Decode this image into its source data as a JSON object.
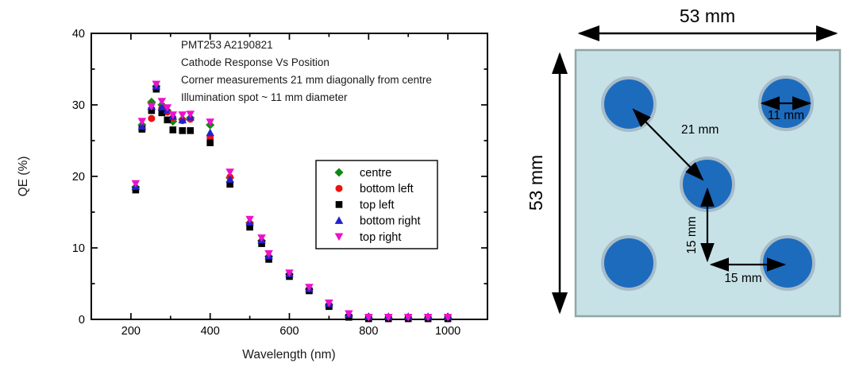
{
  "chart_data": {
    "type": "scatter",
    "annotations": [
      "PMT253 A2190821",
      "Cathode Response Vs Position",
      "Corner measurements 21 mm diagonally from centre",
      "Illumination spot ~ 11 mm diameter"
    ],
    "xlabel": "Wavelength (nm)",
    "ylabel": "QE (%)",
    "xlim": [
      100,
      1100
    ],
    "ylim": [
      0,
      40
    ],
    "xticks_major": [
      200,
      400,
      600,
      800,
      1000
    ],
    "xticks_minor": [
      300,
      500,
      700,
      900
    ],
    "yticks_major": [
      0,
      10,
      20,
      30,
      40
    ],
    "yticks_minor": [
      5,
      15,
      25,
      35
    ],
    "grid": false,
    "legend_position": "middle-right",
    "x": [
      212,
      228,
      252,
      264,
      278,
      292,
      306,
      330,
      350,
      400,
      450,
      500,
      530,
      548,
      600,
      650,
      700,
      750,
      800,
      850,
      900,
      950,
      1000
    ],
    "series": [
      {
        "name": "centre",
        "marker": "diamond",
        "color": "#128712",
        "values": [
          18.5,
          27.2,
          30.4,
          32.6,
          30.0,
          29.2,
          27.7,
          28.0,
          28.2,
          27.2,
          19.8,
          13.5,
          11.0,
          8.8,
          6.3,
          4.2,
          2.0,
          0.5,
          0.2,
          0.2,
          0.2,
          0.2,
          0.2
        ]
      },
      {
        "name": "bottom left",
        "marker": "circle",
        "color": "#ee1111",
        "values": [
          18.2,
          26.8,
          28.1,
          32.4,
          29.5,
          29.0,
          28.2,
          27.8,
          28.0,
          25.4,
          19.9,
          13.4,
          10.9,
          8.7,
          6.2,
          4.1,
          1.9,
          0.4,
          0.2,
          0.1,
          0.1,
          0.1,
          0.1
        ]
      },
      {
        "name": "top left",
        "marker": "square",
        "color": "#000000",
        "values": [
          18.1,
          26.6,
          29.2,
          32.2,
          28.9,
          27.9,
          26.5,
          26.4,
          26.4,
          24.7,
          18.9,
          12.9,
          10.6,
          8.4,
          6.0,
          4.0,
          1.8,
          0.3,
          0.1,
          0.1,
          0.1,
          0.1,
          0.1
        ]
      },
      {
        "name": "bottom right",
        "marker": "triangle-up",
        "color": "#2222cc",
        "values": [
          18.6,
          27.0,
          29.8,
          32.6,
          29.7,
          29.3,
          28.4,
          27.9,
          28.3,
          26.1,
          19.6,
          13.6,
          11.1,
          8.9,
          6.4,
          4.3,
          2.2,
          0.7,
          0.4,
          0.4,
          0.4,
          0.4,
          0.4
        ]
      },
      {
        "name": "top right",
        "marker": "triangle-down",
        "color": "#ee10cc",
        "values": [
          19.0,
          27.7,
          29.8,
          32.9,
          30.5,
          29.6,
          28.6,
          28.6,
          28.7,
          27.6,
          20.6,
          14.0,
          11.4,
          9.2,
          6.5,
          4.5,
          2.3,
          0.8,
          0.3,
          0.3,
          0.3,
          0.3,
          0.3
        ]
      }
    ]
  },
  "diagram": {
    "labels": {
      "width": "53 mm",
      "height": "53 mm",
      "diagonal": "21 mm",
      "spot_diameter": "11 mm",
      "vertical_offset": "15 mm",
      "horizontal_offset": "15 mm"
    },
    "colors": {
      "face": "#c7e2e6",
      "face_edge": "#8fa6a6",
      "spot_fill": "#1d6bbd",
      "spot_edge": "#a6bcc9"
    }
  }
}
